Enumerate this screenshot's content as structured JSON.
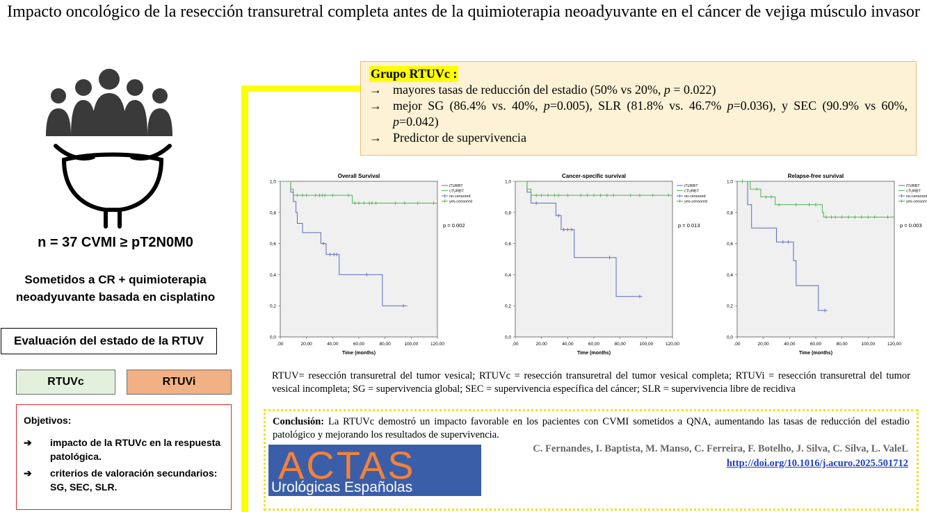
{
  "title": "Impacto oncológico de la resección transuretral completa antes de la quimioterapia neoadyuvante en el cáncer de vejiga músculo invasor",
  "left": {
    "n_line": "n = 37 CVMI ≥ pT2N0M0",
    "sometidos": "Sometidos a CR + quimioterapia neoadyuvante basada en cisplatino",
    "eval": "Evaluación del estado de la RTUV",
    "rtuvc": "RTUVc",
    "rtuvi": "RTUVi",
    "objetivos_title": "Objetivos:",
    "objetivos": [
      "impacto de la RTUVc en la respuesta patológica.",
      "criterios de valoración secundarios: SG, SEC, SLR."
    ],
    "arrow": "➔"
  },
  "grupo": {
    "title": "Grupo RTUVc :",
    "arrow": "→",
    "item1_pre": "mayores tasas de reducción del estadio (50% vs 20%, ",
    "item1_p": "p",
    "item1_post": " = 0.022)",
    "item2_a": "mejor SG (86.4% vs. 40%, ",
    "item2_p1": "p",
    "item2_b": "=0.005), SLR (81.8% vs. 46.7% ",
    "item2_p2": "p",
    "item2_c": "=0.036), y SEC (90.9% vs 60%, ",
    "item2_p3": "p",
    "item2_d": "=0.042)",
    "item3": "Predictor de supervivencia"
  },
  "abbreviations": "RTUV= resección transuretral del tumor vesical; RTUVc = resección transuretral del tumor vesical completa; RTUVi = resección transuretral del tumor vesical incompleta; SG = supervivencia global; SEC = supervivencia específica del cáncer; SLR = supervivencia libre de recidiva",
  "conclusion": {
    "label": "Conclusión:",
    "text": " La RTUVc demostró un impacto favorable en los pacientes con CVMI sometidos a QNA, aumentando las tasas de reducción del estadio patológico y mejorando los resultados de supervivencia.",
    "authors": "C. Fernandes, I. Baptista, M. Manso, C. Ferreira, F. Botelho, J. Silva, C. Silva, L. ValeL",
    "doi": "http://doi.org/10.1016/j.acuro.2025.501712"
  },
  "logo": {
    "top": "ACTAS",
    "bottom": "Urológicas Españolas"
  },
  "colors": {
    "iturbt": "#5a68c0",
    "cturbt": "#4fb04f",
    "yellow": "#ffff00"
  },
  "chart_data": [
    {
      "type": "line",
      "title": "Overall Survival",
      "xlabel": "Time (months)",
      "xlim": [
        0,
        120
      ],
      "ylim": [
        0,
        1
      ],
      "xticks": [
        ",00",
        "20,00",
        "40,00",
        "60,00",
        "80,00",
        "100,00",
        "120,00"
      ],
      "yticks": [
        "0,0",
        "0,2",
        "0,4",
        "0,6",
        "0,8",
        "1,0"
      ],
      "legend": [
        "iTURBT",
        "cTURBT",
        "no-censored",
        "yes-censored"
      ],
      "pvalue": "p = 0.002",
      "series": [
        {
          "name": "iTURBT",
          "color": "#5a68c0",
          "steps": [
            [
              0,
              1.0
            ],
            [
              6,
              1.0
            ],
            [
              8,
              0.93
            ],
            [
              10,
              0.87
            ],
            [
              12,
              0.8
            ],
            [
              13,
              0.73
            ],
            [
              17,
              0.67
            ],
            [
              31,
              0.6
            ],
            [
              35,
              0.53
            ],
            [
              45,
              0.4
            ],
            [
              78,
              0.2
            ],
            [
              97,
              0.2
            ]
          ],
          "censored": [
            [
              33,
              0.6
            ],
            [
              38,
              0.53
            ],
            [
              41,
              0.53
            ],
            [
              43,
              0.53
            ],
            [
              66,
              0.4
            ],
            [
              94,
              0.2
            ]
          ]
        },
        {
          "name": "cTURBT",
          "color": "#4fb04f",
          "steps": [
            [
              0,
              1.0
            ],
            [
              6,
              1.0
            ],
            [
              8,
              0.95
            ],
            [
              10,
              0.91
            ],
            [
              55,
              0.86
            ],
            [
              120,
              0.86
            ]
          ],
          "censored": [
            [
              13,
              0.91
            ],
            [
              17,
              0.91
            ],
            [
              20,
              0.91
            ],
            [
              27,
              0.91
            ],
            [
              30,
              0.91
            ],
            [
              32,
              0.91
            ],
            [
              34,
              0.91
            ],
            [
              40,
              0.91
            ],
            [
              52,
              0.91
            ],
            [
              57,
              0.86
            ],
            [
              60,
              0.86
            ],
            [
              64,
              0.86
            ],
            [
              68,
              0.86
            ],
            [
              70,
              0.86
            ],
            [
              73,
              0.86
            ],
            [
              88,
              0.86
            ],
            [
              95,
              0.86
            ],
            [
              105,
              0.86
            ],
            [
              117,
              0.86
            ]
          ]
        }
      ]
    },
    {
      "type": "line",
      "title": "Cancer-specific survival",
      "xlabel": "Time (months)",
      "xlim": [
        0,
        120
      ],
      "ylim": [
        0,
        1
      ],
      "xticks": [
        ",00",
        "20,00",
        "40,00",
        "60,00",
        "80,00",
        "100,00",
        "120,00"
      ],
      "yticks": [
        "0,0",
        "0,2",
        "0,4",
        "0,6",
        "0,8",
        "1,0"
      ],
      "legend": [
        "iTURBT",
        "cTURBT",
        "no-censored",
        "yes-censored"
      ],
      "pvalue": "p = 0.013",
      "series": [
        {
          "name": "iTURBT",
          "color": "#5a68c0",
          "steps": [
            [
              0,
              1.0
            ],
            [
              8,
              1.0
            ],
            [
              9,
              0.93
            ],
            [
              12,
              0.86
            ],
            [
              31,
              0.78
            ],
            [
              35,
              0.69
            ],
            [
              45,
              0.51
            ],
            [
              77,
              0.26
            ],
            [
              97,
              0.26
            ]
          ],
          "censored": [
            [
              16,
              0.86
            ],
            [
              33,
              0.78
            ],
            [
              37,
              0.69
            ],
            [
              40,
              0.69
            ],
            [
              43,
              0.69
            ],
            [
              72,
              0.51
            ],
            [
              95,
              0.26
            ]
          ]
        },
        {
          "name": "cTURBT",
          "color": "#4fb04f",
          "steps": [
            [
              0,
              1.0
            ],
            [
              8,
              1.0
            ],
            [
              9,
              0.95
            ],
            [
              12,
              0.91
            ],
            [
              120,
              0.91
            ]
          ],
          "censored": [
            [
              16,
              0.91
            ],
            [
              20,
              0.91
            ],
            [
              25,
              0.91
            ],
            [
              30,
              0.91
            ],
            [
              33,
              0.91
            ],
            [
              40,
              0.91
            ],
            [
              50,
              0.91
            ],
            [
              55,
              0.91
            ],
            [
              60,
              0.91
            ],
            [
              65,
              0.91
            ],
            [
              70,
              0.91
            ],
            [
              75,
              0.91
            ],
            [
              88,
              0.91
            ],
            [
              95,
              0.91
            ],
            [
              105,
              0.91
            ],
            [
              117,
              0.91
            ]
          ]
        }
      ]
    },
    {
      "type": "line",
      "title": "Relapse-free survival",
      "xlabel": "Time (months)",
      "xlim": [
        0,
        120
      ],
      "ylim": [
        0,
        1
      ],
      "xticks": [
        ",00",
        "20,00",
        "40,00",
        "60,00",
        "80,00",
        "100,00",
        "120,00"
      ],
      "yticks": [
        "0,0",
        "0,2",
        "0,4",
        "0,6",
        "0,8",
        "1,0"
      ],
      "legend": [
        "iTURBT",
        "cTURBT",
        "no-censored",
        "yes-censored"
      ],
      "pvalue": "p = 0.003",
      "series": [
        {
          "name": "iTURBT",
          "color": "#5a68c0",
          "steps": [
            [
              0,
              1.0
            ],
            [
              6,
              1.0
            ],
            [
              8,
              0.85
            ],
            [
              11,
              0.7
            ],
            [
              30,
              0.61
            ],
            [
              43,
              0.49
            ],
            [
              45,
              0.33
            ],
            [
              62,
              0.17
            ],
            [
              69,
              0.17
            ]
          ],
          "censored": [
            [
              35,
              0.61
            ],
            [
              39,
              0.61
            ],
            [
              67,
              0.17
            ]
          ]
        },
        {
          "name": "cTURBT",
          "color": "#4fb04f",
          "steps": [
            [
              0,
              1.0
            ],
            [
              8,
              1.0
            ],
            [
              10,
              0.95
            ],
            [
              18,
              0.9
            ],
            [
              29,
              0.85
            ],
            [
              65,
              0.8
            ],
            [
              66,
              0.77
            ],
            [
              120,
              0.77
            ]
          ],
          "censored": [
            [
              4,
              1.0
            ],
            [
              15,
              0.95
            ],
            [
              22,
              0.9
            ],
            [
              26,
              0.9
            ],
            [
              32,
              0.85
            ],
            [
              45,
              0.85
            ],
            [
              55,
              0.85
            ],
            [
              60,
              0.85
            ],
            [
              68,
              0.77
            ],
            [
              72,
              0.77
            ],
            [
              75,
              0.77
            ],
            [
              80,
              0.77
            ],
            [
              85,
              0.77
            ],
            [
              90,
              0.77
            ],
            [
              95,
              0.77
            ],
            [
              100,
              0.77
            ],
            [
              105,
              0.77
            ],
            [
              115,
              0.77
            ]
          ]
        }
      ]
    }
  ]
}
